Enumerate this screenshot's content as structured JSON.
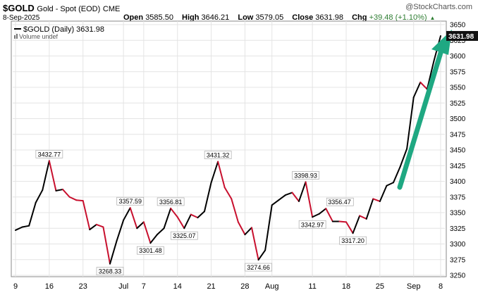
{
  "header": {
    "symbol": "$GOLD",
    "name": "Gold - Spot (EOD)",
    "exchange": "CME",
    "date": "8-Sep-2025",
    "open_label": "Open",
    "open": "3585.50",
    "high_label": "High",
    "high": "3646.21",
    "low_label": "Low",
    "low": "3579.05",
    "close_label": "Close",
    "close": "3631.98",
    "chg_label": "Chg",
    "chg": "+39.48 (+1.10%)",
    "logo": "@StockCharts.com"
  },
  "legend": {
    "series": "$GOLD (Daily) 3631.98",
    "volume": "Volume undef"
  },
  "colors": {
    "up": "#000000",
    "down": "#c8102e",
    "arrow": "#1fa882",
    "last_box": "#111111"
  },
  "chart_data": {
    "type": "line",
    "ylim": [
      3250,
      3660
    ],
    "yticks": [
      3250,
      3275,
      3300,
      3325,
      3350,
      3375,
      3400,
      3425,
      3450,
      3475,
      3500,
      3525,
      3550,
      3575,
      3600,
      3625,
      3650
    ],
    "last_value": "3631.98",
    "xticks": [
      {
        "label": "9",
        "i": 0
      },
      {
        "label": "16",
        "i": 5
      },
      {
        "label": "23",
        "i": 10
      },
      {
        "label": "Jul",
        "i": 16
      },
      {
        "label": "7",
        "i": 19
      },
      {
        "label": "14",
        "i": 24
      },
      {
        "label": "21",
        "i": 29
      },
      {
        "label": "28",
        "i": 34
      },
      {
        "label": "Aug",
        "i": 38
      },
      {
        "label": "11",
        "i": 44
      },
      {
        "label": "18",
        "i": 49
      },
      {
        "label": "25",
        "i": 54
      },
      {
        "label": "Sep",
        "i": 59
      },
      {
        "label": "8",
        "i": 63
      }
    ],
    "values": [
      3322,
      3327,
      3329,
      3366,
      3386,
      3432.77,
      3385,
      3387,
      3375,
      3370,
      3369,
      3323,
      3331,
      3327,
      3268.33,
      3305,
      3338,
      3357.59,
      3325,
      3335,
      3301.48,
      3315,
      3325,
      3356.81,
      3343,
      3325.07,
      3347,
      3342,
      3352,
      3398,
      3431.32,
      3390,
      3372,
      3335,
      3315,
      3326,
      3274.66,
      3290,
      3362,
      3370,
      3378,
      3382,
      3368,
      3398.93,
      3342.97,
      3348,
      3356.47,
      3336,
      3336,
      3335,
      3317.2,
      3345,
      3340,
      3372,
      3368,
      3393,
      3398,
      3423,
      3452,
      3534,
      3558,
      3547,
      3592,
      3631.98
    ],
    "annotations": [
      {
        "i": 5,
        "text": "3432.77",
        "pos": "above"
      },
      {
        "i": 14,
        "text": "3268.33",
        "pos": "below"
      },
      {
        "i": 17,
        "text": "3357.59",
        "pos": "above"
      },
      {
        "i": 20,
        "text": "3301.48",
        "pos": "below"
      },
      {
        "i": 23,
        "text": "3356.81",
        "pos": "above"
      },
      {
        "i": 25,
        "text": "3325.07",
        "pos": "below"
      },
      {
        "i": 30,
        "text": "3431.32",
        "pos": "above"
      },
      {
        "i": 36,
        "text": "3274.66",
        "pos": "below"
      },
      {
        "i": 43,
        "text": "3398.93",
        "pos": "above"
      },
      {
        "i": 44,
        "text": "3342.97",
        "pos": "below"
      },
      {
        "i": 46,
        "text": "3356.47",
        "pos": "right"
      },
      {
        "i": 50,
        "text": "3317.20",
        "pos": "below"
      }
    ]
  }
}
